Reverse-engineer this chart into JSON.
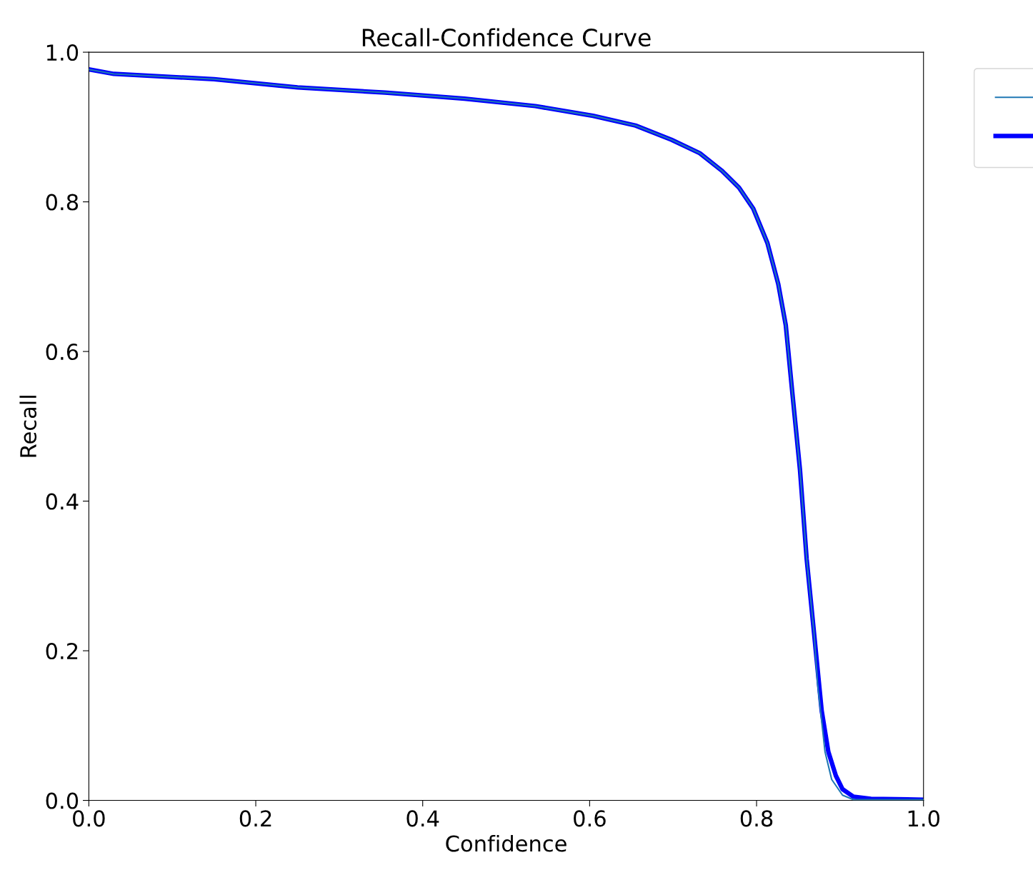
{
  "chart_data": {
    "type": "line",
    "title": "Recall-Confidence Curve",
    "xlabel": "Confidence",
    "ylabel": "Recall",
    "xlim": [
      0,
      1
    ],
    "ylim": [
      0,
      1
    ],
    "xticks": [
      {
        "value": 0,
        "label": "0.0"
      },
      {
        "value": 0.2,
        "label": "0.2"
      },
      {
        "value": 0.4,
        "label": "0.4"
      },
      {
        "value": 0.6,
        "label": "0.6"
      },
      {
        "value": 0.8,
        "label": "0.8"
      },
      {
        "value": 1,
        "label": "1.0"
      }
    ],
    "yticks": [
      {
        "value": 0,
        "label": "0.0"
      },
      {
        "value": 0.2,
        "label": "0.2"
      },
      {
        "value": 0.4,
        "label": "0.4"
      },
      {
        "value": 0.6,
        "label": "0.6"
      },
      {
        "value": 0.8,
        "label": "0.8"
      },
      {
        "value": 1,
        "label": "1.0"
      }
    ],
    "grid": false,
    "marker": "none",
    "line_style": "solid",
    "series": [
      {
        "color": "#1f77b4",
        "x": [
          0,
          0.03,
          0.15,
          0.25,
          0.355,
          0.45,
          0.535,
          0.604,
          0.655,
          0.698,
          0.732,
          0.758,
          0.779,
          0.796,
          0.813,
          0.826,
          0.835,
          0.843,
          0.852,
          0.86,
          0.869,
          0.873,
          0.882,
          0.89,
          0.903,
          0.916,
          0.937,
          1.0
        ],
        "values": [
          0.977,
          0.971,
          0.964,
          0.953,
          0.946,
          0.938,
          0.928,
          0.915,
          0.902,
          0.883,
          0.865,
          0.842,
          0.819,
          0.791,
          0.745,
          0.69,
          0.635,
          0.543,
          0.442,
          0.323,
          0.222,
          0.157,
          0.065,
          0.028,
          0.007,
          0.001,
          0.001,
          0.001
        ]
      },
      {
        "color": "#0000ff",
        "x": [
          0,
          0.03,
          0.15,
          0.25,
          0.355,
          0.45,
          0.535,
          0.604,
          0.655,
          0.698,
          0.732,
          0.758,
          0.779,
          0.796,
          0.813,
          0.826,
          0.835,
          0.843,
          0.852,
          0.86,
          0.869,
          0.878,
          0.886,
          0.895,
          0.903,
          0.916,
          0.937,
          1.0
        ],
        "values": [
          0.977,
          0.971,
          0.964,
          0.953,
          0.946,
          0.938,
          0.928,
          0.915,
          0.902,
          0.883,
          0.865,
          0.842,
          0.819,
          0.791,
          0.745,
          0.69,
          0.635,
          0.543,
          0.442,
          0.323,
          0.222,
          0.12,
          0.065,
          0.033,
          0.015,
          0.005,
          0.002,
          0.001
        ]
      }
    ]
  }
}
